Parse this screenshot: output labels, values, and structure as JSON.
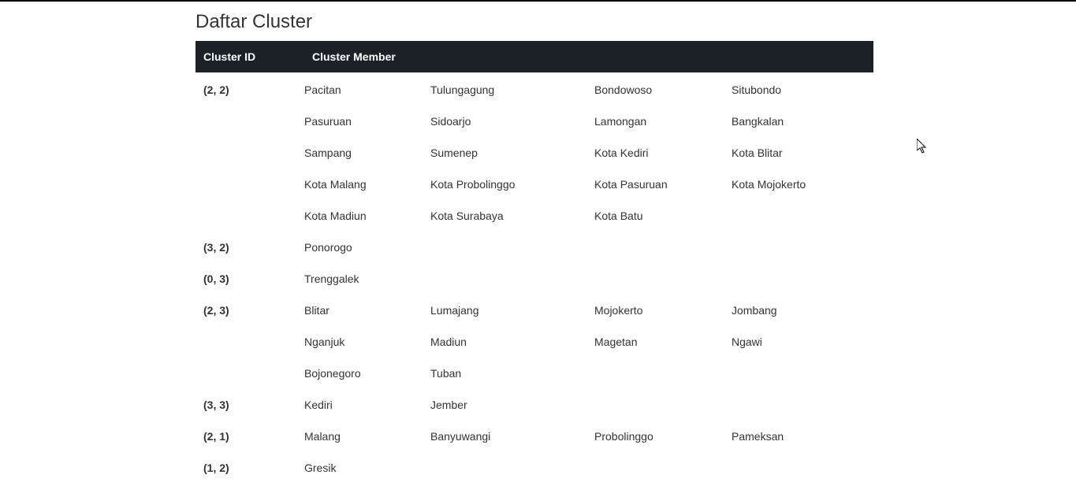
{
  "page_title": "Daftar Cluster",
  "table": {
    "header_id": "Cluster ID",
    "header_member": "Cluster Member",
    "header_bg": "#1c2127",
    "header_fg": "#ffffff",
    "columns_per_row": 4
  },
  "clusters": [
    {
      "id": "(2, 2)",
      "members": [
        "Pacitan",
        "Tulungagung",
        "Bondowoso",
        "Situbondo",
        "Pasuruan",
        "Sidoarjo",
        "Lamongan",
        "Bangkalan",
        "Sampang",
        "Sumenep",
        "Kota Kediri",
        "Kota Blitar",
        "Kota Malang",
        "Kota Probolinggo",
        "Kota Pasuruan",
        "Kota Mojokerto",
        "Kota Madiun",
        "Kota Surabaya",
        "Kota Batu"
      ]
    },
    {
      "id": "(3, 2)",
      "members": [
        "Ponorogo"
      ]
    },
    {
      "id": "(0, 3)",
      "members": [
        "Trenggalek"
      ]
    },
    {
      "id": "(2, 3)",
      "members": [
        "Blitar",
        "Lumajang",
        "Mojokerto",
        "Jombang",
        "Nganjuk",
        "Madiun",
        "Magetan",
        "Ngawi",
        "Bojonegoro",
        "Tuban"
      ]
    },
    {
      "id": "(3, 3)",
      "members": [
        "Kediri",
        "Jember"
      ]
    },
    {
      "id": "(2, 1)",
      "members": [
        "Malang",
        "Banyuwangi",
        "Probolinggo",
        "Pameksan"
      ]
    },
    {
      "id": "(1, 2)",
      "members": [
        "Gresik"
      ]
    }
  ]
}
